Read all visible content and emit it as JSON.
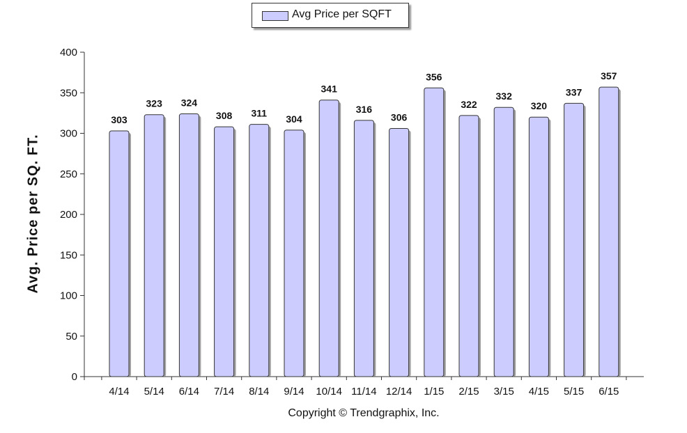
{
  "chart_data": {
    "type": "bar",
    "categories": [
      "4/14",
      "5/14",
      "6/14",
      "7/14",
      "8/14",
      "9/14",
      "10/14",
      "11/14",
      "12/14",
      "1/15",
      "2/15",
      "3/15",
      "4/15",
      "5/15",
      "6/15"
    ],
    "series": [
      {
        "name": "Avg Price per SQFT",
        "values": [
          303,
          323,
          324,
          308,
          311,
          304,
          341,
          316,
          306,
          356,
          322,
          332,
          320,
          337,
          357
        ]
      }
    ],
    "ylabel": "Avg. Price per SQ. FT.",
    "xlabel": "",
    "ylim": [
      0,
      400
    ],
    "yticks": [
      0,
      50,
      100,
      150,
      200,
      250,
      300,
      350,
      400
    ],
    "data_labels": true,
    "legend_position": "top",
    "grid": false,
    "colors": {
      "bar_fill": "#ccccff",
      "bar_stroke": "#333333"
    }
  },
  "footer": {
    "copyright": "Copyright © Trendgraphix, Inc."
  }
}
